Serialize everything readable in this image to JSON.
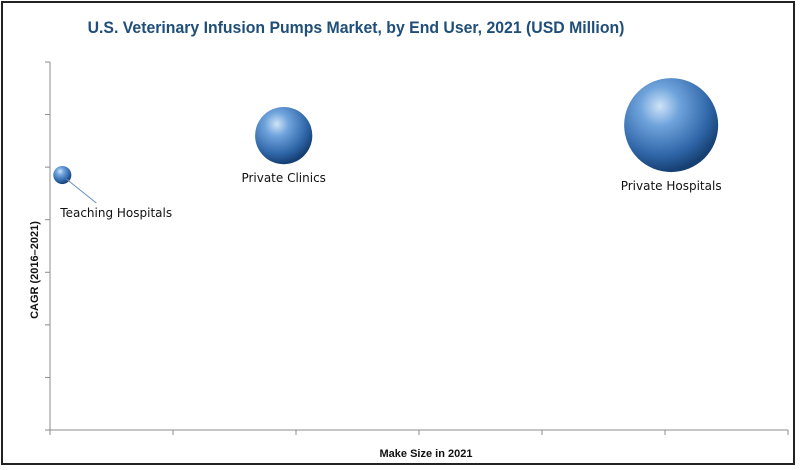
{
  "chart_data": {
    "type": "scatter",
    "variant": "bubble",
    "title": "U.S. Veterinary Infusion Pumps Market, by End User, 2021 (USD Million)",
    "xlabel": "Make Size in 2021",
    "ylabel": "CAGR (2016–2021)",
    "x_ticks": 6,
    "y_ticks": 7,
    "xlim": [
      0,
      6
    ],
    "ylim": [
      0,
      7
    ],
    "grid": false,
    "legend": "none",
    "bubble_color": "#2f6fb5",
    "points": [
      {
        "name": "Teaching Hospitals",
        "x": 0.1,
        "y": 4.85,
        "size": 1
      },
      {
        "name": "Private Clinics",
        "x": 1.9,
        "y": 5.6,
        "size": 10
      },
      {
        "name": "Private Hospitals",
        "x": 5.05,
        "y": 5.8,
        "size": 27
      }
    ]
  }
}
